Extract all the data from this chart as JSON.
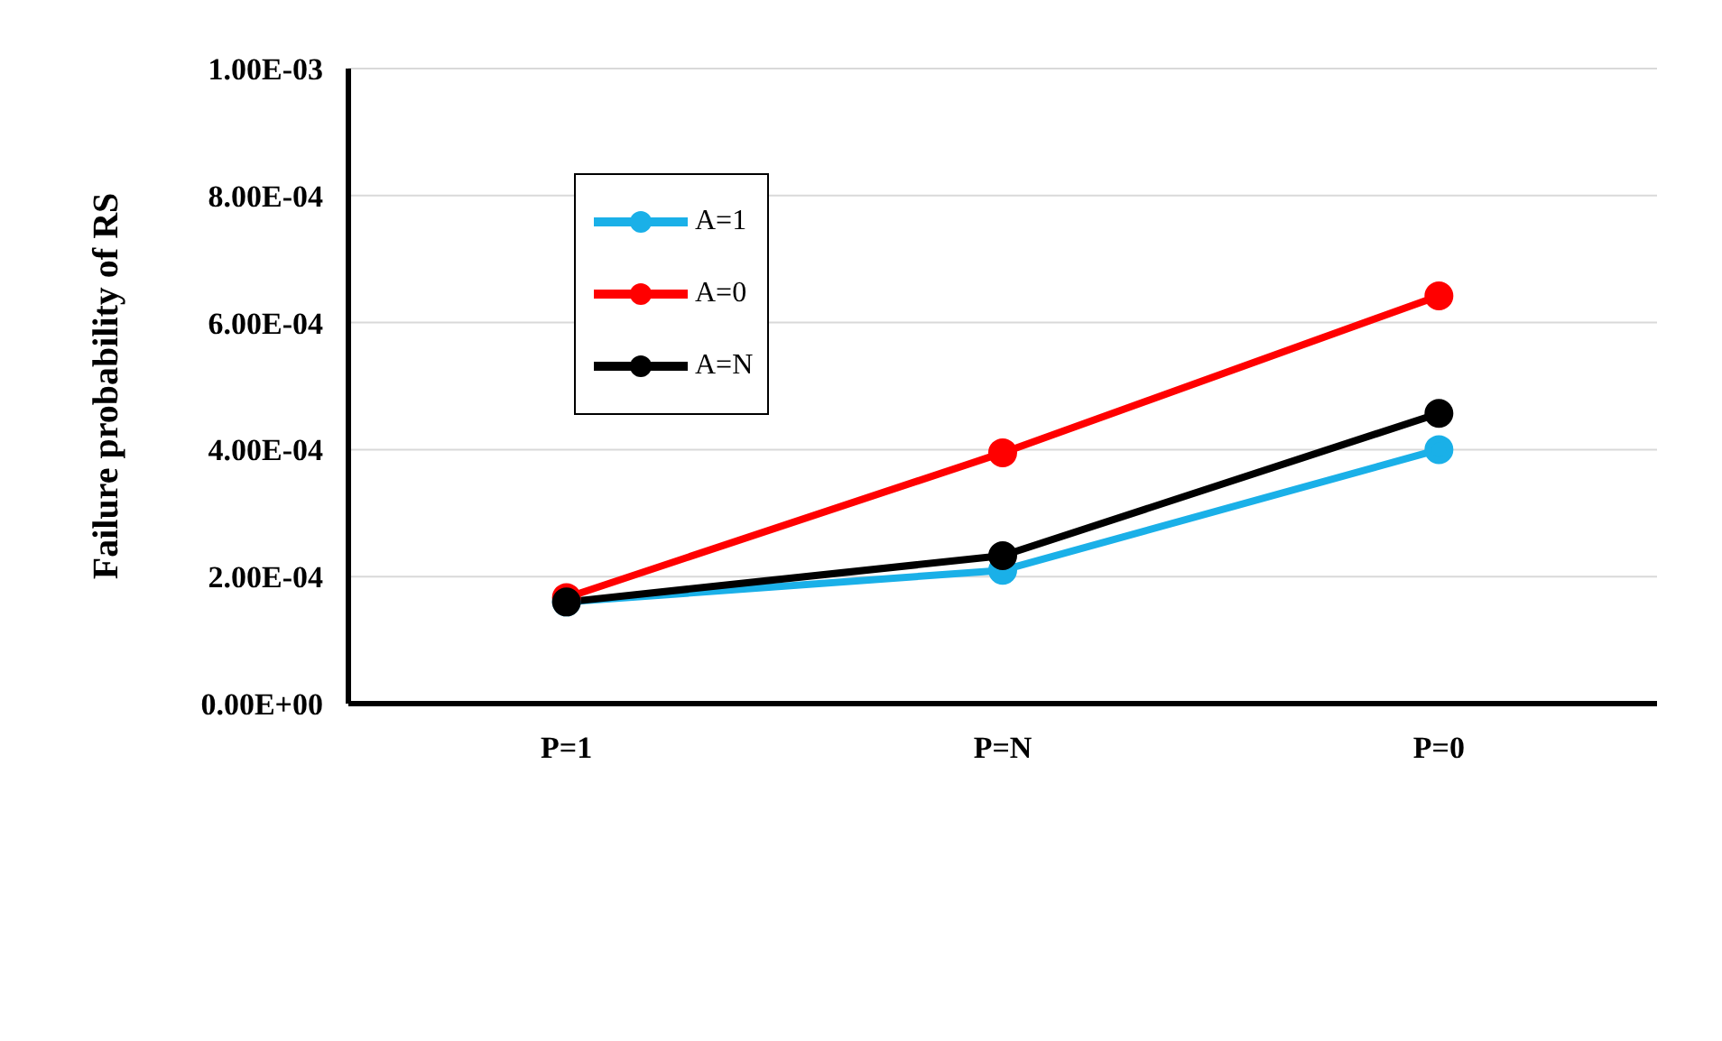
{
  "chart_data": {
    "type": "line",
    "ylabel": "Failure probability of RS",
    "categories": [
      "P=1",
      "P=N",
      "P=0"
    ],
    "series": [
      {
        "name": "A=1",
        "color": "#1ab0e8",
        "values": [
          0.00016,
          0.00021,
          0.0004
        ]
      },
      {
        "name": "A=0",
        "color": "#ff0000",
        "values": [
          0.000167,
          0.000395,
          0.000642
        ]
      },
      {
        "name": "A=N",
        "color": "#000000",
        "values": [
          0.00016,
          0.000233,
          0.000457
        ]
      }
    ],
    "ylim": [
      0,
      0.001
    ],
    "yticks": [
      {
        "value": 0,
        "label": "0.00E+00"
      },
      {
        "value": 0.0002,
        "label": "2.00E-04"
      },
      {
        "value": 0.0004,
        "label": "4.00E-04"
      },
      {
        "value": 0.0006,
        "label": "6.00E-04"
      },
      {
        "value": 0.0008,
        "label": "8.00E-04"
      },
      {
        "value": 0.001,
        "label": "1.00E-03"
      }
    ],
    "grid": "y",
    "legend": "top left",
    "marker": "circle",
    "line_style": "solid"
  }
}
